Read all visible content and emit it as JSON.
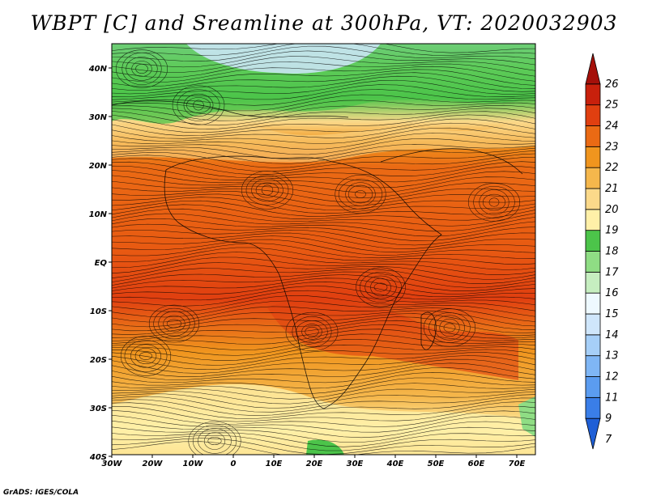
{
  "title": "WBPT [C] and Sreamline at 300hPa, VT: 2020032903",
  "credit": "GrADS: IGES/COLA",
  "map": {
    "lat_labels": [
      "40N",
      "30N",
      "20N",
      "10N",
      "EQ",
      "10S",
      "20S",
      "30S",
      "40S"
    ],
    "lon_labels": [
      "30W",
      "20W",
      "10W",
      "0",
      "10E",
      "20E",
      "30E",
      "40E",
      "50E",
      "60E",
      "70E"
    ]
  },
  "colorbar": {
    "levels": [
      "7",
      "9",
      "11",
      "12",
      "13",
      "14",
      "15",
      "16",
      "17",
      "18",
      "19",
      "20",
      "21",
      "22",
      "23",
      "24",
      "25",
      "26"
    ],
    "colors": [
      "#1f5fd6",
      "#3a7ee8",
      "#5b9cf0",
      "#7fb6f5",
      "#a6cff8",
      "#cfe6fb",
      "#eef9ff",
      "#c6eec0",
      "#8fdd84",
      "#4cc44a",
      "#fff0a8",
      "#fbd98a",
      "#f5b74c",
      "#f0951e",
      "#ea6a14",
      "#e03f10",
      "#c8200c",
      "#a5100a"
    ]
  }
}
